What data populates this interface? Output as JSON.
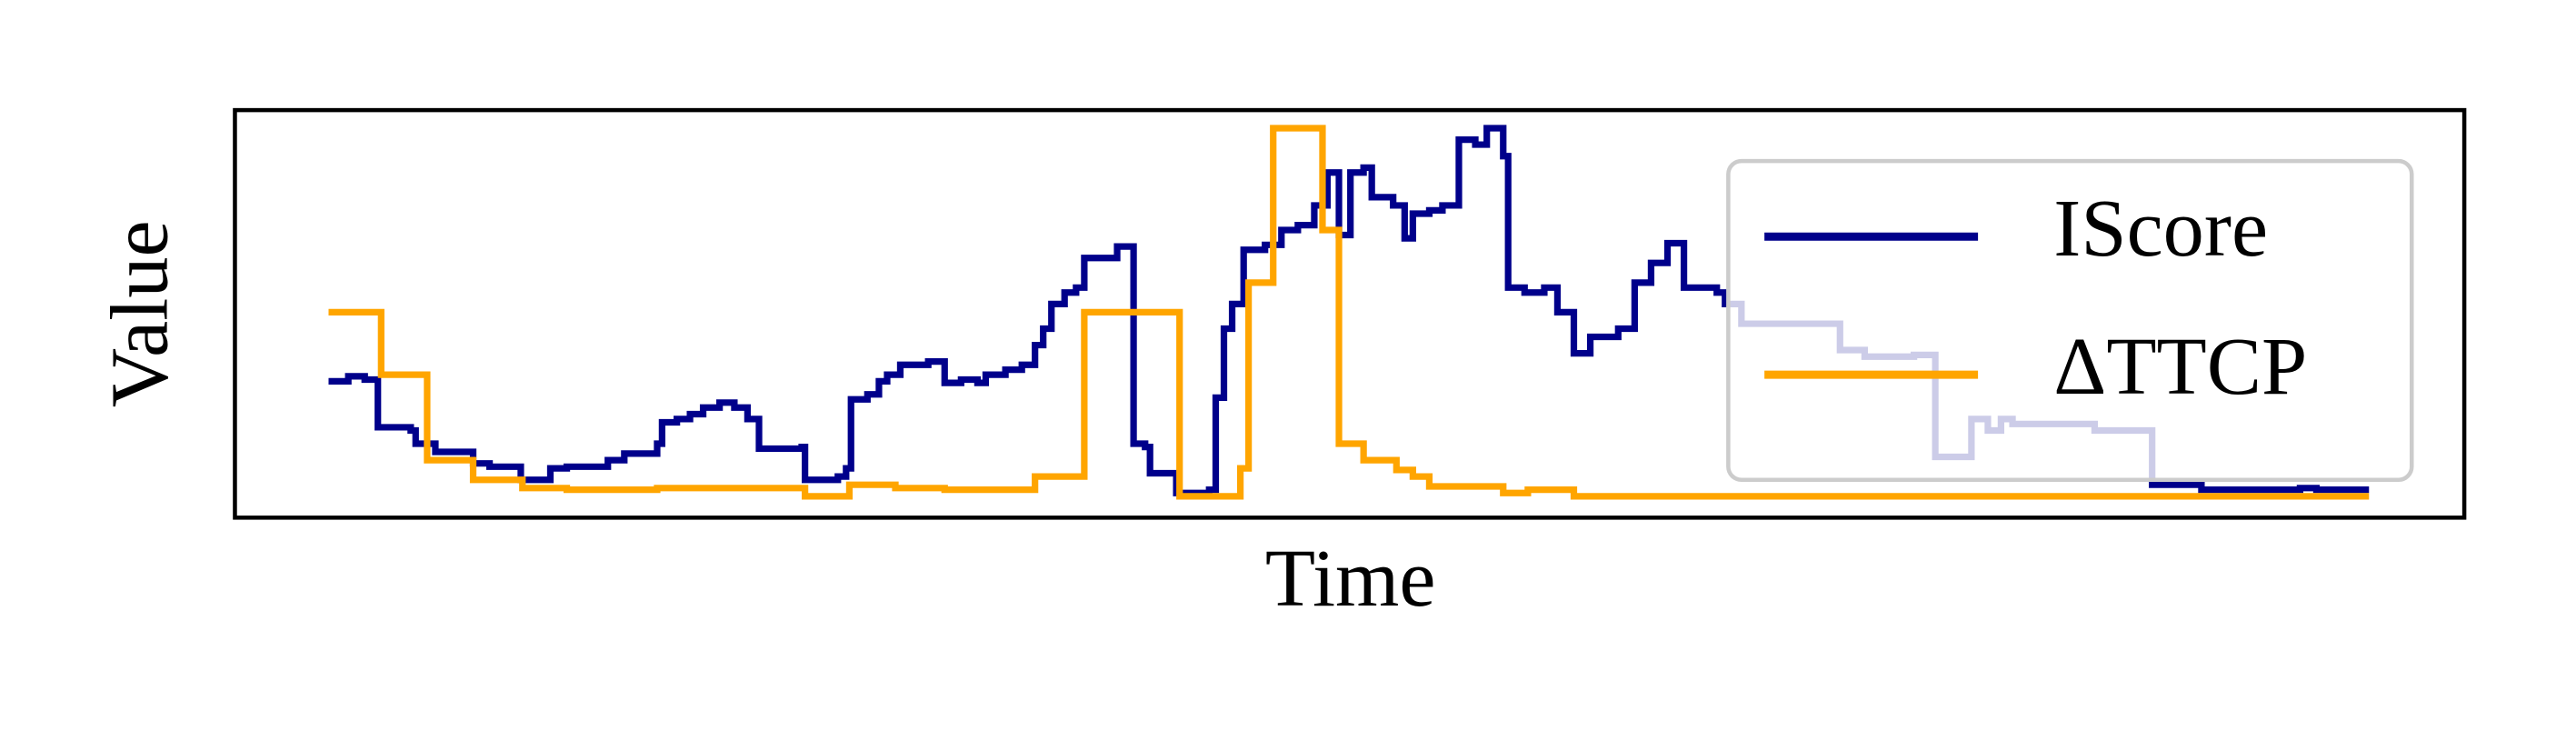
{
  "chart_data": {
    "type": "line",
    "drawstyle": "steps-post",
    "x_label": "Time",
    "y_label": "Value",
    "xlim": [
      0,
      1357
    ],
    "ylim": [
      0,
      248
    ],
    "legend": "upper right",
    "series": [
      {
        "name": "IScore",
        "color": "#00008b",
        "x": [
          57,
          69,
          79,
          87,
          107,
          110,
          122,
          145,
          155,
          174,
          192,
          202,
          227,
          237,
          257,
          260,
          269,
          277,
          285,
          295,
          304,
          312,
          319,
          345,
          347,
          367,
          372,
          375,
          385,
          392,
          397,
          405,
          422,
          432,
          442,
          452,
          457,
          469,
          479,
          487,
          492,
          497,
          505,
          512,
          517,
          537,
          547,
          554,
          557,
          573,
          593,
          597,
          602,
          607,
          614,
          627,
          637,
          647,
          657,
          665,
          672,
          679,
          687,
          692,
          705,
          712,
          717,
          727,
          735,
          745,
          755,
          762,
          772,
          775,
          785,
          797,
          805,
          815,
          825,
          842,
          852,
          862,
          872,
          882,
          902,
          907,
          917,
          977,
          992,
          1022,
          1035,
          1057,
          1067,
          1075,
          1082,
          1132,
          1167,
          1197,
          1257,
          1267,
          1299
        ],
        "values": [
          83,
          86,
          84,
          55,
          53,
          45,
          40,
          33,
          31,
          23,
          30,
          31,
          35,
          39,
          45,
          58,
          60,
          63,
          67,
          70,
          67,
          60,
          42,
          43,
          23,
          25,
          30,
          72,
          75,
          83,
          87,
          93,
          95,
          82,
          84,
          82,
          87,
          90,
          93,
          105,
          115,
          130,
          137,
          140,
          158,
          165,
          45,
          43,
          27,
          15,
          17,
          73,
          115,
          130,
          163,
          166,
          175,
          178,
          190,
          210,
          172,
          210,
          213,
          195,
          190,
          170,
          185,
          187,
          190,
          230,
          227,
          237,
          220,
          140,
          137,
          140,
          125,
          100,
          110,
          115,
          143,
          155,
          167,
          140,
          137,
          130,
          118,
          102,
          98,
          99,
          37,
          60,
          53,
          60,
          57,
          53,
          20,
          17,
          18,
          17,
          17
        ]
      },
      {
        "name": "ΔTTCP",
        "color": "#ffa500",
        "x": [
          57,
          89,
          117,
          145,
          175,
          202,
          257,
          347,
          374,
          402,
          432,
          487,
          517,
          575,
          612,
          617,
          632,
          662,
          672,
          687,
          707,
          717,
          727,
          772,
          787,
          815,
          1299
        ],
        "values": [
          125,
          87,
          35,
          23,
          18,
          17,
          18,
          13,
          20,
          18,
          17,
          25,
          125,
          13,
          30,
          143,
          237,
          175,
          45,
          35,
          29,
          25,
          19,
          15,
          17,
          13,
          13
        ]
      }
    ]
  }
}
